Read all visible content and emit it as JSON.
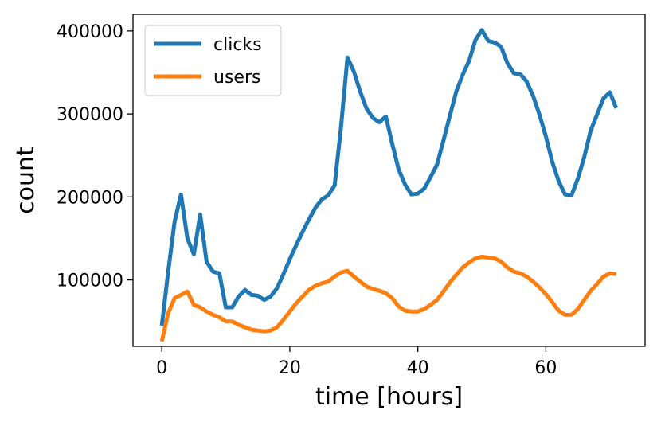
{
  "chart_data": {
    "type": "line",
    "xlabel": "time [hours]",
    "ylabel": "count",
    "xlim": [
      -4.5,
      75.5
    ],
    "ylim": [
      20000,
      420000
    ],
    "xticks": [
      0,
      20,
      40,
      60
    ],
    "yticks": [
      100000,
      200000,
      300000,
      400000
    ],
    "x_tick_labels": [
      "0",
      "20",
      "40",
      "60"
    ],
    "y_tick_labels": [
      "100000",
      "200000",
      "300000",
      "400000"
    ],
    "grid": false,
    "legend_position": "top-left",
    "x": [
      0,
      1,
      2,
      3,
      4,
      5,
      6,
      7,
      8,
      9,
      10,
      11,
      12,
      13,
      14,
      15,
      16,
      17,
      18,
      19,
      20,
      21,
      22,
      23,
      24,
      25,
      26,
      27,
      28,
      29,
      30,
      31,
      32,
      33,
      34,
      35,
      36,
      37,
      38,
      39,
      40,
      41,
      42,
      43,
      44,
      45,
      46,
      47,
      48,
      49,
      50,
      51,
      52,
      53,
      54,
      55,
      56,
      57,
      58,
      59,
      60,
      61,
      62,
      63,
      64,
      65,
      66,
      67,
      68,
      69,
      70,
      71
    ],
    "series": [
      {
        "name": "clicks",
        "color": "#1f77b4",
        "values": [
          45000,
          110000,
          170000,
          203000,
          150000,
          131000,
          179000,
          122000,
          110000,
          108000,
          67000,
          67000,
          80000,
          88000,
          82000,
          81000,
          76000,
          80000,
          90000,
          107000,
          125000,
          142000,
          158000,
          173000,
          187000,
          197000,
          202000,
          214000,
          284000,
          368000,
          351000,
          327000,
          306000,
          295000,
          290000,
          297000,
          264000,
          233000,
          215000,
          203000,
          204000,
          210000,
          224000,
          239000,
          268000,
          298000,
          327000,
          347000,
          364000,
          389000,
          401000,
          388000,
          386000,
          381000,
          361000,
          349000,
          348000,
          339000,
          322000,
          299000,
          273000,
          242000,
          219000,
          203000,
          202000,
          222000,
          248000,
          280000,
          299000,
          319000,
          326000,
          307000
        ]
      },
      {
        "name": "users",
        "color": "#ff7f0e",
        "values": [
          26000,
          60000,
          78000,
          82000,
          86000,
          70000,
          67000,
          62000,
          58000,
          55000,
          50000,
          50000,
          46000,
          43000,
          40000,
          39000,
          38000,
          39000,
          43000,
          52000,
          62000,
          72000,
          80000,
          88000,
          93000,
          96000,
          98000,
          104000,
          109000,
          111000,
          104000,
          98000,
          92000,
          89000,
          87000,
          84000,
          78000,
          68000,
          63000,
          62000,
          62000,
          65000,
          70000,
          76000,
          86000,
          97000,
          106000,
          115000,
          121000,
          126000,
          128000,
          127000,
          126000,
          122000,
          115000,
          110000,
          108000,
          104000,
          98000,
          91000,
          83000,
          73000,
          63000,
          58000,
          58000,
          65000,
          76000,
          87000,
          95000,
          104000,
          108000,
          107000
        ]
      }
    ]
  }
}
